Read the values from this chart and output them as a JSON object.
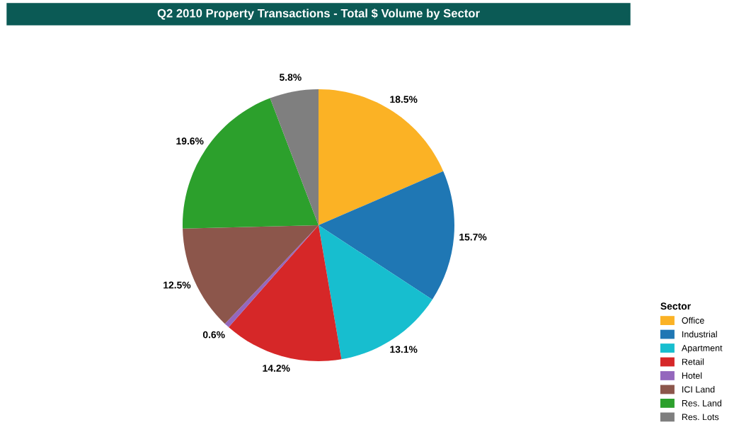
{
  "chart_data": {
    "type": "pie",
    "title": "Q2 2010 Property Transactions - Total $ Volume by Sector",
    "legend_title": "Sector",
    "legend": "bottom right",
    "categories": [
      "Office",
      "Industrial",
      "Apartment",
      "Retail",
      "Hotel",
      "ICI Land",
      "Res. Land",
      "Res. Lots"
    ],
    "values": [
      18.5,
      15.7,
      13.1,
      14.2,
      0.6,
      12.5,
      19.6,
      5.8
    ],
    "value_labels": [
      "18.5%",
      "15.7%",
      "13.1%",
      "14.2%",
      "0.6%",
      "12.5%",
      "19.6%",
      "5.8%"
    ],
    "colors": [
      "#fbb225",
      "#1f77b4",
      "#17becf",
      "#d62728",
      "#9467bd",
      "#8c564b",
      "#2ca02c",
      "#7f7f7f"
    ]
  }
}
